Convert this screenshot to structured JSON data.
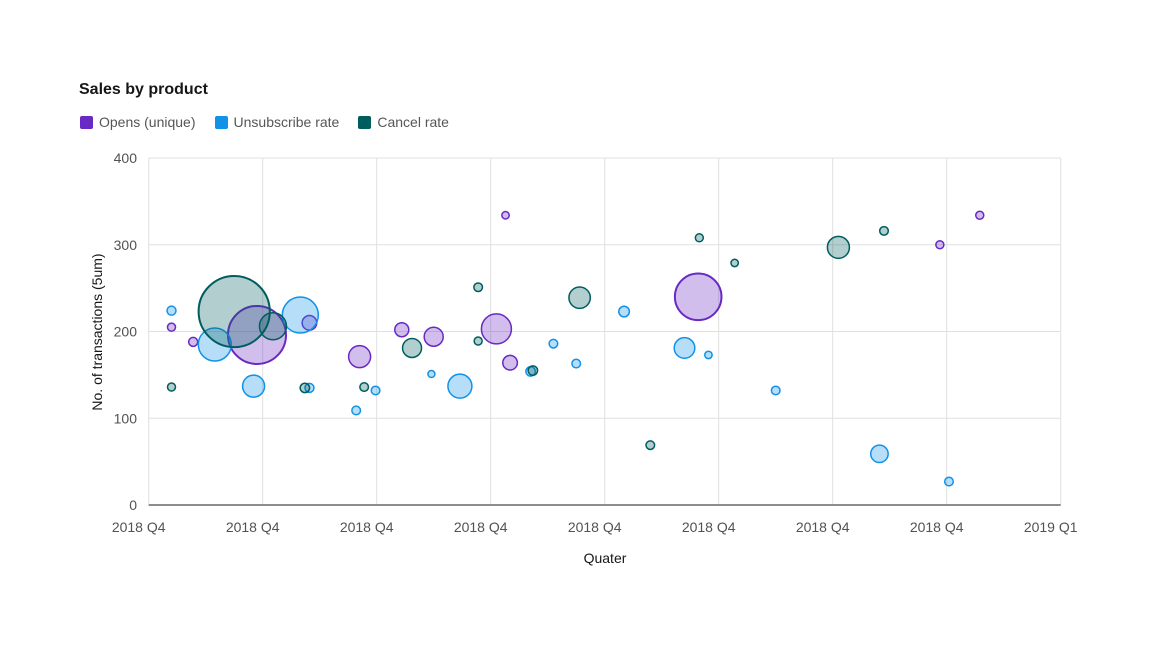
{
  "chart_data": {
    "type": "bubble",
    "title": "Sales by product",
    "x_axis": {
      "label": "Quater",
      "tick_labels": [
        "2018 Q4",
        "2018 Q4",
        "2018 Q4",
        "2018 Q4",
        "2018 Q4",
        "2018 Q4",
        "2018 Q4",
        "2018 Q4",
        "2019 Q1"
      ]
    },
    "y_axis": {
      "label": "No. of transactions (5um)",
      "ticks": [
        0,
        100,
        200,
        300,
        400
      ],
      "range": [
        0,
        400
      ]
    },
    "grid": true,
    "legend": {
      "position": "top",
      "items": [
        {
          "label": "Opens (unique)",
          "color": "#6929c4"
        },
        {
          "label": "Unsubscribe rate",
          "color": "#1192e8"
        },
        {
          "label": "Cancel rate",
          "color": "#005d5d"
        }
      ]
    },
    "colors": {
      "gridline": "#e0e0e0",
      "axis_line": "#8d8d8d",
      "tick_label": "#525252",
      "fill_opacity": 0.3
    },
    "series": [
      {
        "name": "Opens (unique)",
        "color": "#6929c4",
        "points": [
          {
            "x": 0.2,
            "y": 205,
            "r": 4
          },
          {
            "x": 0.39,
            "y": 188,
            "r": 4.5
          },
          {
            "x": 0.95,
            "y": 196,
            "r": 29
          },
          {
            "x": 1.41,
            "y": 210,
            "r": 7.3
          },
          {
            "x": 1.85,
            "y": 171,
            "r": 11
          },
          {
            "x": 2.22,
            "y": 202,
            "r": 7
          },
          {
            "x": 2.5,
            "y": 194,
            "r": 9.5
          },
          {
            "x": 3.05,
            "y": 203,
            "r": 15
          },
          {
            "x": 3.13,
            "y": 334,
            "r": 3.7
          },
          {
            "x": 3.17,
            "y": 164,
            "r": 7.3
          },
          {
            "x": 4.82,
            "y": 240,
            "r": 23.3
          },
          {
            "x": 6.94,
            "y": 300,
            "r": 4
          },
          {
            "x": 7.29,
            "y": 334,
            "r": 4
          }
        ]
      },
      {
        "name": "Unsubscribe rate",
        "color": "#1192e8",
        "points": [
          {
            "x": 0.2,
            "y": 224,
            "r": 4.5
          },
          {
            "x": 0.58,
            "y": 185,
            "r": 16.5
          },
          {
            "x": 0.92,
            "y": 137,
            "r": 11
          },
          {
            "x": 1.33,
            "y": 219,
            "r": 18
          },
          {
            "x": 1.41,
            "y": 135,
            "r": 4.5
          },
          {
            "x": 1.82,
            "y": 109,
            "r": 4.3
          },
          {
            "x": 1.99,
            "y": 132,
            "r": 4.3
          },
          {
            "x": 2.48,
            "y": 151,
            "r": 3.5
          },
          {
            "x": 2.73,
            "y": 137,
            "r": 12
          },
          {
            "x": 3.35,
            "y": 154,
            "r": 4.7
          },
          {
            "x": 3.55,
            "y": 186,
            "r": 4.3
          },
          {
            "x": 3.75,
            "y": 163,
            "r": 4.3
          },
          {
            "x": 4.17,
            "y": 223,
            "r": 5.3
          },
          {
            "x": 4.7,
            "y": 181,
            "r": 10.3
          },
          {
            "x": 4.91,
            "y": 173,
            "r": 3.7
          },
          {
            "x": 5.5,
            "y": 132,
            "r": 4.3
          },
          {
            "x": 6.41,
            "y": 59,
            "r": 8.7
          },
          {
            "x": 7.02,
            "y": 27,
            "r": 4.3
          }
        ]
      },
      {
        "name": "Cancel rate",
        "color": "#005d5d",
        "points": [
          {
            "x": 0.2,
            "y": 136,
            "r": 4
          },
          {
            "x": 0.75,
            "y": 223,
            "r": 35.6
          },
          {
            "x": 1.09,
            "y": 206,
            "r": 13.5
          },
          {
            "x": 1.37,
            "y": 135,
            "r": 4.7
          },
          {
            "x": 1.89,
            "y": 136,
            "r": 4.3
          },
          {
            "x": 2.31,
            "y": 181,
            "r": 9.5
          },
          {
            "x": 2.89,
            "y": 251,
            "r": 4.3
          },
          {
            "x": 2.89,
            "y": 189,
            "r": 4
          },
          {
            "x": 3.37,
            "y": 155,
            "r": 4.7
          },
          {
            "x": 3.78,
            "y": 239,
            "r": 10.7
          },
          {
            "x": 4.4,
            "y": 69,
            "r": 4.3
          },
          {
            "x": 4.83,
            "y": 308,
            "r": 4
          },
          {
            "x": 5.14,
            "y": 279,
            "r": 3.7
          },
          {
            "x": 6.05,
            "y": 297,
            "r": 11
          },
          {
            "x": 6.45,
            "y": 316,
            "r": 4.3
          }
        ]
      }
    ]
  }
}
